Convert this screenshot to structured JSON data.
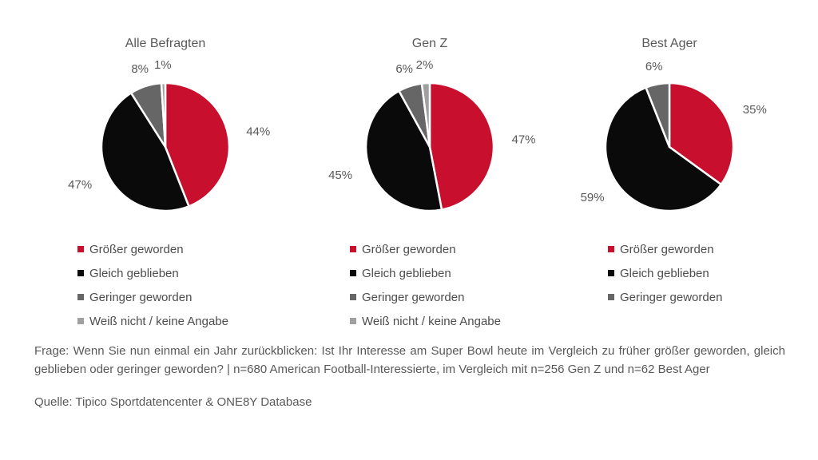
{
  "colors": {
    "increase_red": "#C8102E",
    "same_black": "#0A0A0A",
    "decrease_gray": "#666666",
    "dontknow_gray": "#A0A0A0",
    "text_gray": "#595959"
  },
  "chart_data": [
    {
      "type": "pie",
      "title": "Alle Befragten",
      "labels": [
        "Größer geworden",
        "Gleich geblieben",
        "Geringer geworden",
        "Weiß nicht / keine Angabe"
      ],
      "values": [
        44,
        47,
        8,
        1
      ],
      "data_labels": [
        "44%",
        "47%",
        "8%",
        "1%"
      ],
      "colors": [
        "#C8102E",
        "#0A0A0A",
        "#666666",
        "#A0A0A0"
      ],
      "legend_position": "bottom-left",
      "start_angle": 0,
      "direction": "clockwise"
    },
    {
      "type": "pie",
      "title": "Gen Z",
      "labels": [
        "Größer geworden",
        "Gleich geblieben",
        "Geringer geworden",
        "Weiß nicht / keine Angabe"
      ],
      "values": [
        47,
        45,
        6,
        2
      ],
      "data_labels": [
        "47%",
        "45%",
        "6%",
        "2%"
      ],
      "colors": [
        "#C8102E",
        "#0A0A0A",
        "#666666",
        "#A0A0A0"
      ],
      "legend_position": "bottom-left",
      "start_angle": 0,
      "direction": "clockwise"
    },
    {
      "type": "pie",
      "title": "Best Ager",
      "labels": [
        "Größer geworden",
        "Gleich geblieben",
        "Geringer geworden"
      ],
      "values": [
        35,
        59,
        6
      ],
      "data_labels": [
        "35%",
        "59%",
        "6%"
      ],
      "colors": [
        "#C8102E",
        "#0A0A0A",
        "#666666"
      ],
      "legend_position": "bottom-left",
      "start_angle": 0,
      "direction": "clockwise"
    }
  ],
  "footer": {
    "question": "Frage: Wenn Sie nun einmal ein Jahr zurückblicken: Ist Ihr Interesse am Super Bowl heute im Vergleich zu früher größer geworden, gleich geblieben oder geringer geworden? | n=680 American Football-Interessierte, im Vergleich mit n=256 Gen Z und n=62 Best Ager",
    "source": "Quelle: Tipico Sportdatencenter & ONE8Y Database"
  }
}
